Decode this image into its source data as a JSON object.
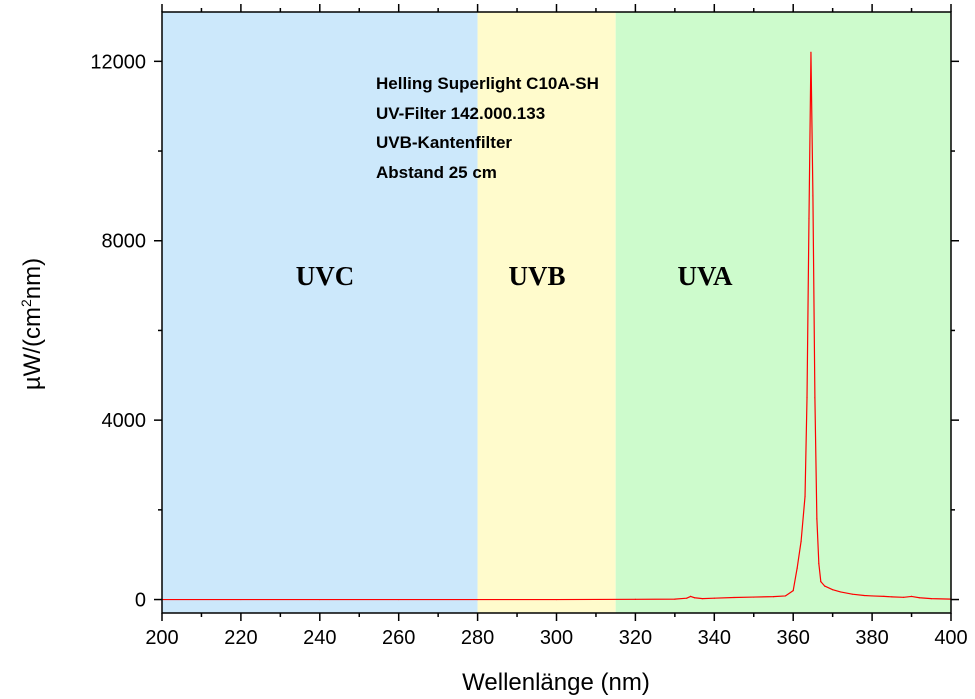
{
  "chart_data": {
    "type": "line",
    "xlabel": "Wellenlänge (nm)",
    "ylabel": {
      "pre": "µW/(cm",
      "sup": "2",
      "post": "nm)"
    },
    "xlim": [
      200,
      400
    ],
    "ylim": [
      -300,
      13100
    ],
    "xticks": [
      200,
      220,
      240,
      260,
      280,
      300,
      320,
      340,
      360,
      380,
      400
    ],
    "yticks": [
      0,
      4000,
      8000,
      12000
    ],
    "grid": false,
    "annotations": [
      "Helling Superlight C10A-SH",
      "UV-Filter 142.000.133",
      "UVB-Kantenfilter",
      "Abstand 25 cm"
    ],
    "regions": [
      {
        "label": "UVC",
        "from": 200,
        "to": 280,
        "color": "#cce8fb"
      },
      {
        "label": "UVB",
        "from": 280,
        "to": 315,
        "color": "#fffbcc"
      },
      {
        "label": "UVA",
        "from": 315,
        "to": 400,
        "color": "#cdfbcc"
      }
    ],
    "series": [
      {
        "color": "#ff0000",
        "x": [
          200,
          220,
          240,
          260,
          280,
          300,
          320,
          330,
          333,
          334,
          335,
          337,
          340,
          345,
          350,
          355,
          358,
          360,
          361,
          362,
          363,
          363.5,
          364,
          364.5,
          365,
          365.5,
          366,
          366.5,
          367,
          368,
          370,
          372,
          375,
          378,
          380,
          383,
          385,
          388,
          390,
          392,
          395,
          400
        ],
        "y": [
          0,
          0,
          0,
          0,
          0,
          0,
          5,
          10,
          30,
          70,
          40,
          20,
          30,
          45,
          55,
          65,
          80,
          200,
          700,
          1300,
          2300,
          4500,
          8500,
          12200,
          9000,
          4500,
          1800,
          800,
          400,
          300,
          220,
          170,
          120,
          90,
          80,
          70,
          60,
          50,
          70,
          40,
          20,
          10
        ]
      }
    ]
  }
}
